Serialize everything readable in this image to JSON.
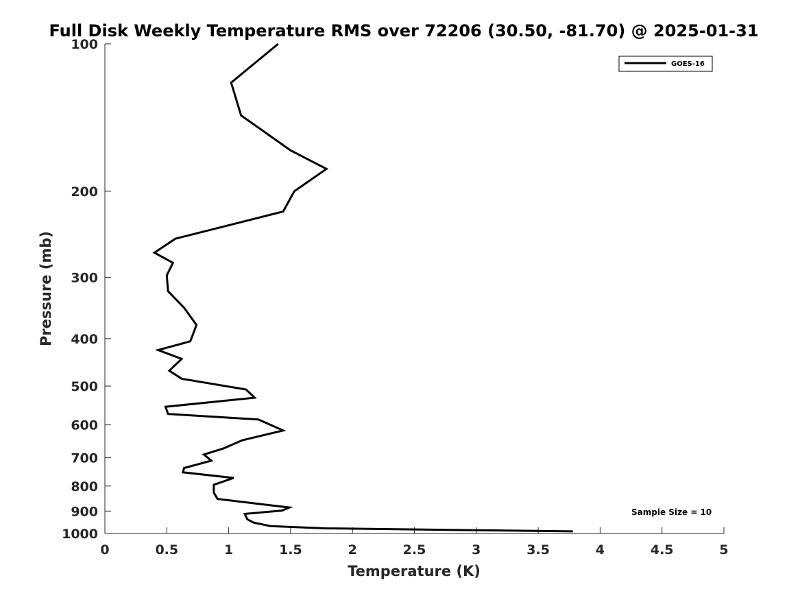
{
  "chart_data": {
    "type": "line",
    "title": "Full Disk Weekly Temperature RMS over 72206 (30.50, -81.70) @ 2025-01-31",
    "xlabel": "Temperature (K)",
    "ylabel": "Pressure (mb)",
    "xlim": [
      0,
      5
    ],
    "ylim": [
      100,
      1000
    ],
    "yscale": "log",
    "y_reversed": true,
    "grid": false,
    "legend_position": "top-right",
    "x_ticks": [
      "0",
      "0.5",
      "1",
      "1.5",
      "2",
      "2.5",
      "3",
      "3.5",
      "4",
      "4.5",
      "5"
    ],
    "y_ticks": [
      "100",
      "200",
      "300",
      "400",
      "500",
      "600",
      "700",
      "800",
      "900",
      "1000"
    ],
    "annotation": "Sample Size = 10",
    "series": [
      {
        "name": "GOES-16",
        "color": "#000000",
        "points": [
          [
            1.4,
            100
          ],
          [
            1.02,
            120
          ],
          [
            1.1,
            140
          ],
          [
            1.5,
            165
          ],
          [
            1.79,
            180
          ],
          [
            1.53,
            200
          ],
          [
            1.44,
            220
          ],
          [
            0.57,
            250
          ],
          [
            0.4,
            267
          ],
          [
            0.55,
            280
          ],
          [
            0.5,
            297
          ],
          [
            0.51,
            320
          ],
          [
            0.64,
            346
          ],
          [
            0.74,
            375
          ],
          [
            0.72,
            387
          ],
          [
            0.69,
            405
          ],
          [
            0.43,
            422
          ],
          [
            0.62,
            440
          ],
          [
            0.52,
            465
          ],
          [
            0.62,
            483
          ],
          [
            1.14,
            508
          ],
          [
            1.21,
            528
          ],
          [
            0.49,
            551
          ],
          [
            0.51,
            570
          ],
          [
            1.24,
            585
          ],
          [
            1.44,
            616
          ],
          [
            1.11,
            645
          ],
          [
            0.96,
            670
          ],
          [
            0.8,
            690
          ],
          [
            0.86,
            710
          ],
          [
            0.64,
            735
          ],
          [
            0.63,
            750
          ],
          [
            1.04,
            770
          ],
          [
            0.88,
            795
          ],
          [
            0.88,
            825
          ],
          [
            0.91,
            850
          ],
          [
            1.24,
            870
          ],
          [
            1.49,
            885
          ],
          [
            1.43,
            898
          ],
          [
            1.13,
            912
          ],
          [
            1.15,
            935
          ],
          [
            1.2,
            950
          ],
          [
            1.34,
            966
          ],
          [
            1.78,
            976
          ],
          [
            3.78,
            990
          ]
        ]
      }
    ]
  }
}
